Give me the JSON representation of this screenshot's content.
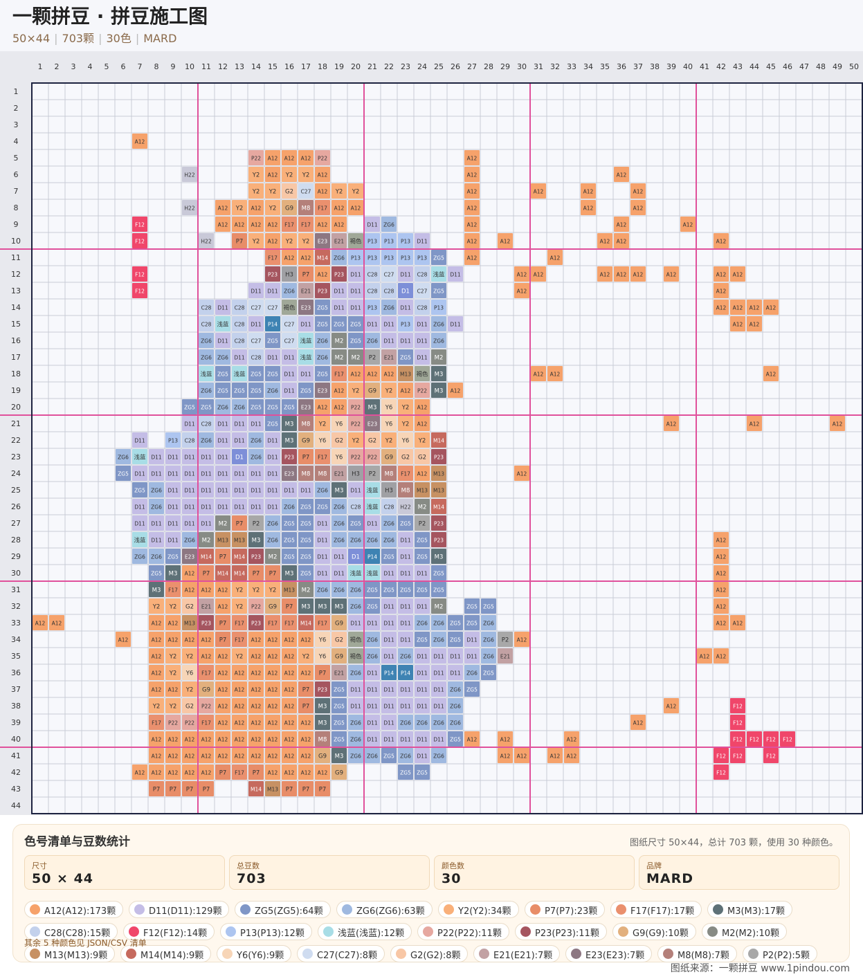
{
  "header": {
    "title": "一颗拼豆 · 拼豆施工图",
    "meta": [
      "50×44",
      "703颗",
      "30色",
      "MARD"
    ]
  },
  "grid": {
    "cols": 50,
    "rows": 44,
    "cells": {
      "4": {
        "7": "A12"
      },
      "5": {
        "14": "P22",
        "15": "A12",
        "16": "A12",
        "17": "A12",
        "18": "P22",
        "27": "A12"
      },
      "6": {
        "10": "H22",
        "14": "Y2",
        "15": "A12",
        "16": "Y2",
        "17": "Y2",
        "18": "A12",
        "27": "A12",
        "36": "A12"
      },
      "7": {
        "14": "Y2",
        "15": "Y2",
        "16": "G2",
        "17": "C27",
        "18": "A12",
        "19": "Y2",
        "20": "Y2",
        "27": "A12",
        "31": "A12",
        "34": "A12",
        "37": "A12"
      },
      "8": {
        "10": "H22",
        "12": "A12",
        "13": "Y2",
        "14": "A12",
        "15": "Y2",
        "16": "G9",
        "17": "M8",
        "18": "F17",
        "19": "A12",
        "20": "A12",
        "27": "A12",
        "34": "A12",
        "37": "A12"
      },
      "9": {
        "7": "F12",
        "12": "A12",
        "13": "A12",
        "14": "A12",
        "15": "A12",
        "16": "F17",
        "17": "F17",
        "18": "A12",
        "19": "A12",
        "21": "D11",
        "22": "ZG6",
        "27": "A12",
        "36": "A12",
        "40": "A12"
      },
      "10": {
        "7": "F12",
        "11": "H22",
        "13": "P7",
        "14": "Y2",
        "15": "A12",
        "16": "Y2",
        "17": "Y2",
        "18": "E23",
        "19": "E21",
        "20": "褐色",
        "21": "P13",
        "22": "P13",
        "23": "P13",
        "24": "D11",
        "27": "A12",
        "29": "A12",
        "35": "A12",
        "36": "A12",
        "42": "A12"
      },
      "11": {
        "15": "F17",
        "16": "A12",
        "17": "A12",
        "18": "M14",
        "19": "ZG6",
        "20": "P13",
        "21": "P13",
        "22": "P13",
        "23": "P13",
        "24": "P13",
        "25": "ZG5",
        "27": "A12",
        "32": "A12"
      },
      "12": {
        "7": "F12",
        "15": "P23",
        "16": "H3",
        "17": "P7",
        "18": "A12",
        "19": "P23",
        "20": "D11",
        "21": "C28",
        "22": "C27",
        "23": "D11",
        "24": "C28",
        "25": "浅蓝",
        "26": "D11",
        "30": "A12",
        "31": "A12",
        "35": "A12",
        "36": "A12",
        "37": "A12",
        "39": "A12",
        "42": "A12",
        "43": "A12"
      },
      "13": {
        "7": "F12",
        "14": "D11",
        "15": "D11",
        "16": "ZG6",
        "17": "E21",
        "18": "P23",
        "19": "D11",
        "20": "D11",
        "21": "C28",
        "22": "C28",
        "23": "D1",
        "24": "C27",
        "25": "ZG5",
        "30": "A12",
        "42": "A12"
      },
      "14": {
        "11": "C28",
        "12": "D11",
        "13": "C28",
        "14": "C27",
        "15": "C27",
        "16": "褐色",
        "17": "E23",
        "18": "ZG5",
        "19": "D11",
        "20": "D11",
        "21": "P13",
        "22": "ZG6",
        "23": "D11",
        "24": "C28",
        "25": "P13",
        "42": "A12",
        "43": "A12",
        "44": "A12",
        "45": "A12"
      },
      "15": {
        "11": "C28",
        "12": "浅蓝",
        "13": "C28",
        "14": "D11",
        "15": "P14",
        "16": "C27",
        "17": "D11",
        "18": "ZG5",
        "19": "ZG5",
        "20": "ZG5",
        "21": "D11",
        "22": "D11",
        "23": "P13",
        "24": "D11",
        "25": "ZG6",
        "26": "D11",
        "43": "A12",
        "44": "A12"
      },
      "16": {
        "11": "ZG6",
        "12": "D11",
        "13": "C28",
        "14": "C27",
        "15": "ZG5",
        "16": "C27",
        "17": "浅蓝",
        "18": "ZG6",
        "19": "M2",
        "20": "ZG5",
        "21": "ZG6",
        "22": "D11",
        "23": "D11",
        "24": "D11",
        "25": "ZG6"
      },
      "17": {
        "11": "ZG6",
        "12": "ZG6",
        "13": "D11",
        "14": "C28",
        "15": "D11",
        "16": "D11",
        "17": "浅蓝",
        "18": "ZG6",
        "19": "M2",
        "20": "M2",
        "21": "P2",
        "22": "E21",
        "23": "ZG5",
        "24": "D11",
        "25": "M2"
      },
      "18": {
        "11": "浅蓝",
        "12": "ZG5",
        "13": "浅蓝",
        "14": "ZG5",
        "15": "ZG5",
        "16": "D11",
        "17": "D11",
        "18": "ZG5",
        "19": "F17",
        "20": "A12",
        "21": "A12",
        "22": "A12",
        "23": "M13",
        "24": "褐色",
        "25": "M3",
        "31": "A12",
        "32": "A12",
        "45": "A12"
      },
      "19": {
        "11": "ZG6",
        "12": "ZG5",
        "13": "ZG5",
        "14": "ZG5",
        "15": "ZG6",
        "16": "D11",
        "17": "ZG5",
        "18": "E23",
        "19": "A12",
        "20": "Y2",
        "21": "G9",
        "22": "Y2",
        "23": "A12",
        "24": "P22",
        "25": "M3",
        "26": "A12"
      },
      "20": {
        "10": "ZG5",
        "11": "ZG5",
        "12": "ZG6",
        "13": "ZG6",
        "14": "ZG5",
        "15": "ZG5",
        "16": "ZG5",
        "17": "E23",
        "18": "A12",
        "19": "A12",
        "20": "P22",
        "21": "M3",
        "22": "Y6",
        "23": "Y2",
        "24": "A12"
      },
      "21": {
        "10": "D11",
        "11": "C28",
        "12": "D11",
        "13": "D11",
        "14": "D11",
        "15": "ZG5",
        "16": "M3",
        "17": "M8",
        "18": "Y2",
        "19": "Y6",
        "20": "P22",
        "21": "E23",
        "22": "Y6",
        "23": "Y2",
        "24": "A12",
        "39": "A12",
        "44": "A12",
        "49": "A12"
      },
      "22": {
        "7": "D11",
        "9": "P13",
        "10": "C28",
        "11": "ZG6",
        "12": "D11",
        "13": "D11",
        "14": "ZG6",
        "15": "D11",
        "16": "M3",
        "17": "G9",
        "18": "Y6",
        "19": "G2",
        "20": "Y2",
        "21": "G2",
        "22": "Y2",
        "23": "Y6",
        "24": "Y2",
        "25": "M14"
      },
      "23": {
        "6": "ZG6",
        "7": "浅蓝",
        "8": "D11",
        "9": "D11",
        "10": "D11",
        "11": "D11",
        "12": "D11",
        "13": "D1",
        "14": "ZG6",
        "15": "D11",
        "16": "P23",
        "17": "P7",
        "18": "F17",
        "19": "Y6",
        "20": "P22",
        "21": "P22",
        "22": "G9",
        "23": "G2",
        "24": "G2",
        "25": "P23"
      },
      "24": {
        "6": "ZG5",
        "7": "D11",
        "8": "D11",
        "9": "D11",
        "10": "D11",
        "11": "D11",
        "12": "D11",
        "13": "D11",
        "14": "D11",
        "15": "D11",
        "16": "E23",
        "17": "M8",
        "18": "M8",
        "19": "E21",
        "20": "H3",
        "21": "P2",
        "22": "M8",
        "23": "F17",
        "24": "A12",
        "25": "M13",
        "30": "A12"
      },
      "25": {
        "7": "ZG5",
        "8": "ZG6",
        "9": "D11",
        "10": "D11",
        "11": "D11",
        "12": "D11",
        "13": "D11",
        "14": "D11",
        "15": "D11",
        "16": "D11",
        "17": "D11",
        "18": "ZG6",
        "19": "M3",
        "20": "D11",
        "21": "浅蓝",
        "22": "H3",
        "23": "M8",
        "24": "M13",
        "25": "M13"
      },
      "26": {
        "7": "D11",
        "8": "ZG6",
        "9": "D11",
        "10": "D11",
        "11": "D11",
        "12": "D11",
        "13": "D11",
        "14": "D11",
        "15": "D11",
        "16": "ZG6",
        "17": "ZG5",
        "18": "ZG5",
        "19": "ZG6",
        "20": "C28",
        "21": "浅蓝",
        "22": "C28",
        "23": "H22",
        "24": "M2",
        "25": "M14"
      },
      "27": {
        "7": "D11",
        "8": "D11",
        "9": "D11",
        "10": "D11",
        "11": "D11",
        "12": "M2",
        "13": "P7",
        "14": "P2",
        "15": "ZG6",
        "16": "ZG5",
        "17": "ZG5",
        "18": "D11",
        "19": "ZG6",
        "20": "ZG5",
        "21": "D11",
        "22": "ZG6",
        "23": "ZG5",
        "24": "P2",
        "25": "P23"
      },
      "28": {
        "7": "浅蓝",
        "8": "D11",
        "9": "D11",
        "10": "ZG6",
        "11": "M2",
        "12": "M13",
        "13": "M13",
        "14": "M3",
        "15": "ZG6",
        "16": "ZG5",
        "17": "ZG5",
        "18": "D11",
        "19": "ZG6",
        "20": "ZG6",
        "21": "ZG6",
        "22": "ZG6",
        "23": "D11",
        "24": "ZG5",
        "25": "P23",
        "42": "A12"
      },
      "29": {
        "7": "ZG6",
        "8": "ZG6",
        "9": "ZG5",
        "10": "E23",
        "11": "M14",
        "12": "P7",
        "13": "M14",
        "14": "P23",
        "15": "M2",
        "16": "ZG5",
        "17": "ZG5",
        "18": "D11",
        "19": "D11",
        "20": "D1",
        "21": "P14",
        "22": "ZG5",
        "23": "D11",
        "24": "ZG5",
        "25": "M3",
        "42": "A12"
      },
      "30": {
        "8": "ZG5",
        "9": "M3",
        "10": "A12",
        "11": "P7",
        "12": "M14",
        "13": "M14",
        "14": "P7",
        "15": "P7",
        "16": "M3",
        "17": "ZG5",
        "18": "D11",
        "19": "D11",
        "20": "浅蓝",
        "21": "浅蓝",
        "22": "D11",
        "23": "D11",
        "24": "D11",
        "25": "ZG5",
        "42": "A12"
      },
      "31": {
        "8": "M3",
        "9": "F17",
        "10": "A12",
        "11": "A12",
        "12": "A12",
        "13": "Y2",
        "14": "Y2",
        "15": "Y2",
        "16": "M13",
        "17": "M2",
        "18": "ZG6",
        "19": "ZG6",
        "20": "ZG6",
        "21": "ZG5",
        "22": "ZG5",
        "23": "ZG5",
        "24": "ZG5",
        "25": "ZG5",
        "42": "A12"
      },
      "32": {
        "8": "Y2",
        "9": "Y2",
        "10": "G2",
        "11": "E21",
        "12": "A12",
        "13": "Y2",
        "14": "P22",
        "15": "G9",
        "16": "P7",
        "17": "M3",
        "18": "M3",
        "19": "M3",
        "20": "ZG6",
        "21": "ZG5",
        "22": "D11",
        "23": "D11",
        "24": "D11",
        "25": "M2",
        "27": "ZG5",
        "28": "ZG5",
        "42": "A12"
      },
      "33": {
        "1": "A12",
        "2": "A12",
        "8": "A12",
        "9": "A12",
        "10": "M13",
        "11": "P23",
        "12": "P7",
        "13": "F17",
        "14": "P23",
        "15": "F17",
        "16": "F17",
        "17": "M14",
        "18": "F17",
        "19": "G9",
        "20": "D11",
        "21": "D11",
        "22": "D11",
        "23": "D11",
        "24": "ZG6",
        "25": "ZG6",
        "26": "ZG5",
        "27": "ZG5",
        "28": "ZG6",
        "42": "A12",
        "43": "A12"
      },
      "34": {
        "6": "A12",
        "8": "A12",
        "9": "A12",
        "10": "A12",
        "11": "A12",
        "12": "P7",
        "13": "F17",
        "14": "A12",
        "15": "A12",
        "16": "A12",
        "17": "A12",
        "18": "Y6",
        "19": "G2",
        "20": "褐色",
        "21": "ZG6",
        "22": "D11",
        "23": "D11",
        "24": "ZG5",
        "25": "ZG6",
        "26": "ZG5",
        "27": "D11",
        "28": "ZG6",
        "29": "P2",
        "30": "A12"
      },
      "35": {
        "8": "A12",
        "9": "Y2",
        "10": "Y2",
        "11": "A12",
        "12": "A12",
        "13": "Y2",
        "14": "A12",
        "15": "A12",
        "16": "A12",
        "17": "Y2",
        "18": "Y6",
        "19": "G9",
        "20": "褐色",
        "21": "ZG6",
        "22": "D11",
        "23": "ZG6",
        "24": "D11",
        "25": "D11",
        "26": "D11",
        "27": "D11",
        "28": "ZG6",
        "29": "E21",
        "41": "A12",
        "42": "A12"
      },
      "36": {
        "8": "A12",
        "9": "Y2",
        "10": "Y6",
        "11": "F17",
        "12": "A12",
        "13": "A12",
        "14": "A12",
        "15": "A12",
        "16": "A12",
        "17": "A12",
        "18": "P7",
        "19": "E21",
        "20": "ZG6",
        "21": "D11",
        "22": "P14",
        "23": "P14",
        "24": "D11",
        "25": "D11",
        "26": "D11",
        "27": "ZG6",
        "28": "ZG5"
      },
      "37": {
        "8": "A12",
        "9": "A12",
        "10": "Y2",
        "11": "G9",
        "12": "A12",
        "13": "A12",
        "14": "A12",
        "15": "A12",
        "16": "A12",
        "17": "P7",
        "18": "P23",
        "19": "ZG5",
        "20": "D11",
        "21": "D11",
        "22": "D11",
        "23": "D11",
        "24": "D11",
        "25": "D11",
        "26": "ZG6",
        "27": "ZG5"
      },
      "38": {
        "8": "Y2",
        "9": "Y2",
        "10": "G2",
        "11": "P22",
        "12": "A12",
        "13": "A12",
        "14": "A12",
        "15": "A12",
        "16": "A12",
        "17": "P7",
        "18": "M3",
        "19": "ZG5",
        "20": "D11",
        "21": "D11",
        "22": "D11",
        "23": "D11",
        "24": "D11",
        "25": "D11",
        "26": "ZG6",
        "39": "A12",
        "43": "F12"
      },
      "39": {
        "8": "F17",
        "9": "P22",
        "10": "P22",
        "11": "F17",
        "12": "A12",
        "13": "A12",
        "14": "A12",
        "15": "A12",
        "16": "A12",
        "17": "A12",
        "18": "M3",
        "19": "ZG5",
        "20": "ZG6",
        "21": "D11",
        "22": "D11",
        "23": "ZG6",
        "24": "ZG6",
        "25": "ZG6",
        "26": "ZG6",
        "37": "A12",
        "43": "F12"
      },
      "40": {
        "8": "A12",
        "9": "A12",
        "10": "A12",
        "11": "A12",
        "12": "A12",
        "13": "A12",
        "14": "A12",
        "15": "A12",
        "16": "A12",
        "17": "A12",
        "18": "M8",
        "19": "ZG5",
        "20": "ZG6",
        "21": "D11",
        "22": "D11",
        "23": "D11",
        "24": "D11",
        "25": "D11",
        "26": "ZG5",
        "27": "A12",
        "29": "A12",
        "33": "A12",
        "43": "F12",
        "44": "F12",
        "45": "F12",
        "46": "F12"
      },
      "41": {
        "8": "A12",
        "9": "A12",
        "10": "A12",
        "11": "A12",
        "12": "A12",
        "13": "A12",
        "14": "A12",
        "15": "A12",
        "16": "A12",
        "17": "A12",
        "18": "G9",
        "19": "M3",
        "20": "ZG6",
        "21": "ZG6",
        "22": "ZG5",
        "23": "ZG6",
        "24": "D11",
        "25": "ZG6",
        "29": "A12",
        "30": "A12",
        "32": "A12",
        "33": "A12",
        "42": "F12",
        "43": "F12",
        "45": "F12"
      },
      "42": {
        "7": "A12",
        "8": "A12",
        "9": "A12",
        "10": "A12",
        "11": "A12",
        "12": "P7",
        "13": "F17",
        "14": "P7",
        "15": "A12",
        "16": "A12",
        "17": "A12",
        "18": "A12",
        "19": "G9",
        "23": "ZG5",
        "24": "ZG5",
        "42": "F12"
      },
      "43": {
        "8": "P7",
        "9": "P7",
        "10": "P7",
        "11": "P7",
        "14": "M14",
        "15": "M13",
        "16": "P7",
        "17": "P7",
        "18": "P7"
      }
    },
    "colors": {
      "A12": "#f6a26b",
      "D11": "#c4bde6",
      "ZG5": "#7f96c6",
      "ZG6": "#9fb9e0",
      "Y2": "#f9b07a",
      "P7": "#e88d68",
      "F17": "#ea906e",
      "M3": "#5e7177",
      "C28": "#c3d1ec",
      "F12": "#f0466a",
      "P13": "#adc5f0",
      "浅蓝": "#a8dde6",
      "P22": "#e6a8a0",
      "P23": "#a5555f",
      "G9": "#e2b07e",
      "M2": "#878b85",
      "M13": "#c79163",
      "M14": "#c66a5e",
      "Y6": "#f7d5b7",
      "C27": "#cfdcf0",
      "G2": "#f8c7a6",
      "E21": "#c2a1a3",
      "E23": "#8d7782",
      "M8": "#b4807a",
      "P2": "#a8a8a8",
      "H22": "#c9c9d8",
      "H3": "#a0a0a4",
      "褐色": "#a0a898",
      "D1": "#7d8fd8",
      "P14": "#3e83b3"
    },
    "dark_text_codes": [
      "M3",
      "P23",
      "F12",
      "P14",
      "E23",
      "M8",
      "M14",
      "ZG5",
      "M2",
      "D1"
    ]
  },
  "stats": {
    "title": "色号清单与豆数统计",
    "note": "图纸尺寸 50×44，总计 703 颗，使用 30 种颜色。",
    "cards": [
      {
        "label": "尺寸",
        "value": "50 × 44"
      },
      {
        "label": "总豆数",
        "value": "703"
      },
      {
        "label": "颜色数",
        "value": "30"
      },
      {
        "label": "品牌",
        "value": "MARD"
      }
    ],
    "chips": [
      {
        "text": "A12(A12):173颗",
        "color": "#f6a26b"
      },
      {
        "text": "D11(D11):129颗",
        "color": "#c4bde6"
      },
      {
        "text": "ZG5(ZG5):64颗",
        "color": "#7f96c6"
      },
      {
        "text": "ZG6(ZG6):63颗",
        "color": "#9fb9e0"
      },
      {
        "text": "Y2(Y2):34颗",
        "color": "#f9b07a"
      },
      {
        "text": "P7(P7):23颗",
        "color": "#e88d68"
      },
      {
        "text": "F17(F17):17颗",
        "color": "#ea906e"
      },
      {
        "text": "M3(M3):17颗",
        "color": "#5e7177"
      },
      {
        "text": "C28(C28):15颗",
        "color": "#c3d1ec"
      },
      {
        "text": "F12(F12):14颗",
        "color": "#f0466a"
      },
      {
        "text": "P13(P13):12颗",
        "color": "#adc5f0"
      },
      {
        "text": "浅蓝(浅蓝):12颗",
        "color": "#a8dde6"
      },
      {
        "text": "P22(P22):11颗",
        "color": "#e6a8a0"
      },
      {
        "text": "P23(P23):11颗",
        "color": "#a5555f"
      },
      {
        "text": "G9(G9):10颗",
        "color": "#e2b07e"
      },
      {
        "text": "M2(M2):10颗",
        "color": "#878b85"
      },
      {
        "text": "M13(M13):9颗",
        "color": "#c79163"
      },
      {
        "text": "M14(M14):9颗",
        "color": "#c66a5e"
      },
      {
        "text": "Y6(Y6):9颗",
        "color": "#f7d5b7"
      },
      {
        "text": "C27(C27):8颗",
        "color": "#cfdcf0"
      },
      {
        "text": "G2(G2):8颗",
        "color": "#f8c7a6"
      },
      {
        "text": "E21(E21):7颗",
        "color": "#c2a1a3"
      },
      {
        "text": "E23(E23):7颗",
        "color": "#8d7782"
      },
      {
        "text": "M8(M8):7颗",
        "color": "#b4807a"
      },
      {
        "text": "P2(P2):5颗",
        "color": "#a8a8a8"
      }
    ],
    "more_note": "其余 5 种颜色见 JSON/CSV 清单"
  },
  "footer": "图纸来源：一颗拼豆 www.1pindou.com"
}
